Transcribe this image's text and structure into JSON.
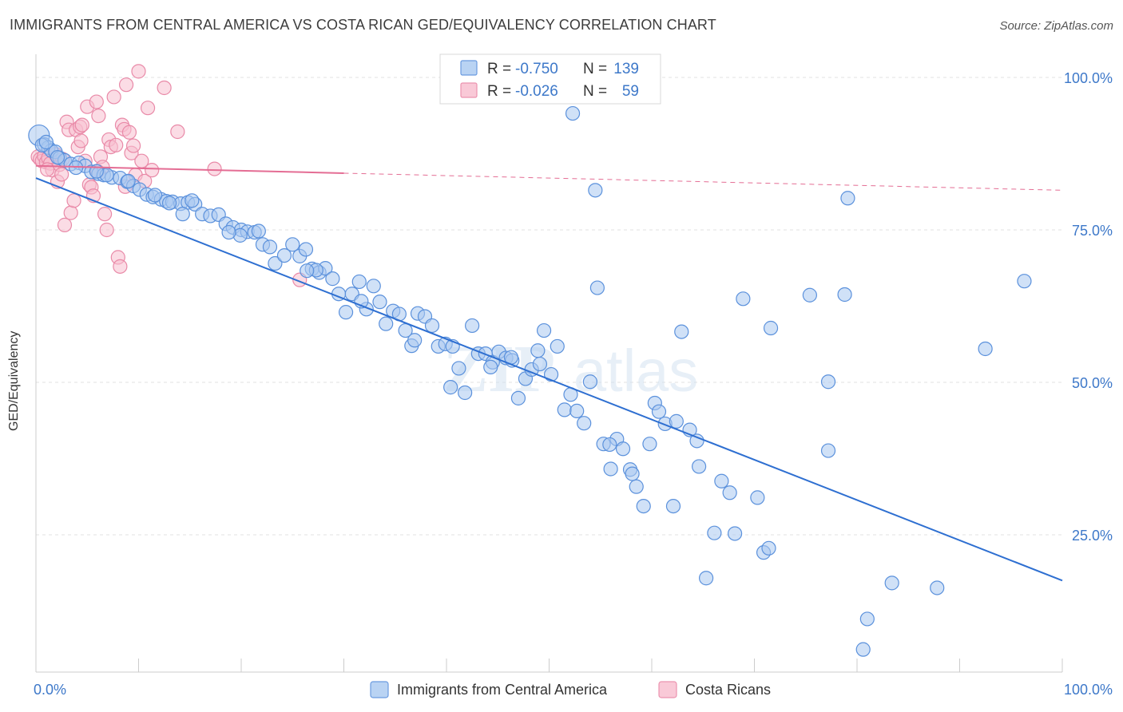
{
  "header": {
    "title": "IMMIGRANTS FROM CENTRAL AMERICA VS COSTA RICAN GED/EQUIVALENCY CORRELATION CHART",
    "source": "Source: ZipAtlas.com"
  },
  "watermark": {
    "part1": "ZIP",
    "part2": "atlas"
  },
  "colors": {
    "blue_fill": "#a9c8f0",
    "blue_stroke": "#5b91dc",
    "blue_line": "#2e6fd1",
    "pink_fill": "#f7bfd0",
    "pink_stroke": "#e98aa8",
    "pink_line": "#e46d94",
    "axis_text": "#3d78c9",
    "grid": "#e2e2e2"
  },
  "legend": {
    "rows": [
      {
        "r_label": "R =",
        "r_value": "-0.750",
        "n_label": "N =",
        "n_value": "139"
      },
      {
        "r_label": "R =",
        "r_value": "-0.026",
        "n_label": "N =",
        "n_value": "59"
      }
    ]
  },
  "chart_data": {
    "type": "scatter",
    "title": "IMMIGRANTS FROM CENTRAL AMERICA VS COSTA RICAN GED/EQUIVALENCY CORRELATION CHART",
    "xlabel": "",
    "ylabel": "GED/Equivalency",
    "xlim": [
      0,
      100
    ],
    "ylim": [
      0,
      102
    ],
    "x_tick_labels": [
      "0.0%",
      "100.0%"
    ],
    "y_ticks": [
      25,
      50,
      75,
      100
    ],
    "y_tick_labels": [
      "25.0%",
      "50.0%",
      "75.0%",
      "100.0%"
    ],
    "series": [
      {
        "name": "Immigrants from Central America",
        "color": "blue",
        "r": -0.75,
        "n": 139,
        "trend": {
          "x0": 0,
          "y0": 83.5,
          "x1": 100,
          "y1": 17.5,
          "solid_until": 100
        },
        "points": [
          [
            0.3,
            90.5
          ],
          [
            0.8,
            89.0
          ],
          [
            1.2,
            88.5
          ],
          [
            1.5,
            88.0
          ],
          [
            1.9,
            87.8
          ],
          [
            2.3,
            86.8
          ],
          [
            2.8,
            86.4
          ],
          [
            3.4,
            85.8
          ],
          [
            4.2,
            86.0
          ],
          [
            4.8,
            85.5
          ],
          [
            5.4,
            84.5
          ],
          [
            6.1,
            84.2
          ],
          [
            6.6,
            84.0
          ],
          [
            7.4,
            83.6
          ],
          [
            8.2,
            83.5
          ],
          [
            8.9,
            82.9
          ],
          [
            9.5,
            82.2
          ],
          [
            10.1,
            81.6
          ],
          [
            10.8,
            80.8
          ],
          [
            11.4,
            80.4
          ],
          [
            12.2,
            80.0
          ],
          [
            12.7,
            79.7
          ],
          [
            13.3,
            79.6
          ],
          [
            14.1,
            79.3
          ],
          [
            14.8,
            79.5
          ],
          [
            15.5,
            79.2
          ],
          [
            16.2,
            77.6
          ],
          [
            17.0,
            77.3
          ],
          [
            17.8,
            77.5
          ],
          [
            18.5,
            76.0
          ],
          [
            19.2,
            75.4
          ],
          [
            20.0,
            75.0
          ],
          [
            20.6,
            74.7
          ],
          [
            21.3,
            74.6
          ],
          [
            22.1,
            72.6
          ],
          [
            22.8,
            72.2
          ],
          [
            23.3,
            69.5
          ],
          [
            24.2,
            70.8
          ],
          [
            25.0,
            72.6
          ],
          [
            25.7,
            70.7
          ],
          [
            26.3,
            71.8
          ],
          [
            26.9,
            68.6
          ],
          [
            27.6,
            68.0
          ],
          [
            28.2,
            68.7
          ],
          [
            28.9,
            67.0
          ],
          [
            29.5,
            64.5
          ],
          [
            30.2,
            61.5
          ],
          [
            30.8,
            64.5
          ],
          [
            31.5,
            66.5
          ],
          [
            32.2,
            62.0
          ],
          [
            32.9,
            65.8
          ],
          [
            33.5,
            63.2
          ],
          [
            34.1,
            59.6
          ],
          [
            34.8,
            61.7
          ],
          [
            35.4,
            61.2
          ],
          [
            36.0,
            58.5
          ],
          [
            36.6,
            56.0
          ],
          [
            37.2,
            61.3
          ],
          [
            37.9,
            60.8
          ],
          [
            38.6,
            59.3
          ],
          [
            39.2,
            55.9
          ],
          [
            39.9,
            56.3
          ],
          [
            40.6,
            55.9
          ],
          [
            41.2,
            52.3
          ],
          [
            41.8,
            48.3
          ],
          [
            42.5,
            59.3
          ],
          [
            43.1,
            54.7
          ],
          [
            43.8,
            54.7
          ],
          [
            44.5,
            53.3
          ],
          [
            45.1,
            55.0
          ],
          [
            45.8,
            54.0
          ],
          [
            46.4,
            53.6
          ],
          [
            47.0,
            47.4
          ],
          [
            47.7,
            50.6
          ],
          [
            48.3,
            52.1
          ],
          [
            48.9,
            55.2
          ],
          [
            49.5,
            58.5
          ],
          [
            50.2,
            51.3
          ],
          [
            50.8,
            55.9
          ],
          [
            51.5,
            45.5
          ],
          [
            52.1,
            48.0
          ],
          [
            52.7,
            45.3
          ],
          [
            53.4,
            43.3
          ],
          [
            54.0,
            50.1
          ],
          [
            54.7,
            65.5
          ],
          [
            55.3,
            39.9
          ],
          [
            56.0,
            35.8
          ],
          [
            56.6,
            40.7
          ],
          [
            57.2,
            39.1
          ],
          [
            57.9,
            35.7
          ],
          [
            58.5,
            32.9
          ],
          [
            59.2,
            29.7
          ],
          [
            59.8,
            39.9
          ],
          [
            60.3,
            46.6
          ],
          [
            60.7,
            45.2
          ],
          [
            61.3,
            43.2
          ],
          [
            62.1,
            29.7
          ],
          [
            62.9,
            58.3
          ],
          [
            63.7,
            42.2
          ],
          [
            64.4,
            40.4
          ],
          [
            64.6,
            36.2
          ],
          [
            65.3,
            17.9
          ],
          [
            66.1,
            25.3
          ],
          [
            66.8,
            33.8
          ],
          [
            67.6,
            31.9
          ],
          [
            68.1,
            25.2
          ],
          [
            68.9,
            63.7
          ],
          [
            70.3,
            31.1
          ],
          [
            70.9,
            22.1
          ],
          [
            71.4,
            22.8
          ],
          [
            71.6,
            58.9
          ],
          [
            75.4,
            64.3
          ],
          [
            77.2,
            38.8
          ],
          [
            78.8,
            64.4
          ],
          [
            79.1,
            80.2
          ],
          [
            77.2,
            50.1
          ],
          [
            80.6,
            6.2
          ],
          [
            81.0,
            11.2
          ],
          [
            83.4,
            17.1
          ],
          [
            87.8,
            16.3
          ],
          [
            92.5,
            55.5
          ],
          [
            96.3,
            66.6
          ],
          [
            52.3,
            94.1
          ],
          [
            54.5,
            81.5
          ],
          [
            58.1,
            35.0
          ],
          [
            40.4,
            49.2
          ],
          [
            36.9,
            56.9
          ],
          [
            46.3,
            54.1
          ],
          [
            0.6,
            88.9
          ],
          [
            3.9,
            85.2
          ],
          [
            6.9,
            84.0
          ],
          [
            11.6,
            80.7
          ],
          [
            14.3,
            77.6
          ],
          [
            19.9,
            74.1
          ],
          [
            27.3,
            68.4
          ],
          [
            31.7,
            63.3
          ],
          [
            44.3,
            52.5
          ],
          [
            49.1,
            53.0
          ],
          [
            55.9,
            39.8
          ],
          [
            62.4,
            43.6
          ],
          [
            26.4,
            68.3
          ],
          [
            21.7,
            74.8
          ],
          [
            18.8,
            74.6
          ],
          [
            15.2,
            79.8
          ],
          [
            13.0,
            79.4
          ],
          [
            9.0,
            83.0
          ],
          [
            5.9,
            84.6
          ],
          [
            2.1,
            86.9
          ],
          [
            1.0,
            89.4
          ]
        ]
      },
      {
        "name": "Costa Ricans",
        "color": "pink",
        "r": -0.026,
        "n": 59,
        "trend": {
          "x0": 0,
          "y0": 85.5,
          "x1": 100,
          "y1": 81.5,
          "solid_until": 30
        },
        "points": [
          [
            0.2,
            87.0
          ],
          [
            0.4,
            86.6
          ],
          [
            0.6,
            86.3
          ],
          [
            0.8,
            87.1
          ],
          [
            1.0,
            86.1
          ],
          [
            1.2,
            86.8
          ],
          [
            1.4,
            85.9
          ],
          [
            1.6,
            84.8
          ],
          [
            1.9,
            87.4
          ],
          [
            2.1,
            82.9
          ],
          [
            2.3,
            85.7
          ],
          [
            2.5,
            84.1
          ],
          [
            2.8,
            75.8
          ],
          [
            3.0,
            92.7
          ],
          [
            3.2,
            91.4
          ],
          [
            3.4,
            77.8
          ],
          [
            3.7,
            79.8
          ],
          [
            3.9,
            91.4
          ],
          [
            4.1,
            88.6
          ],
          [
            4.3,
            91.9
          ],
          [
            4.5,
            92.2
          ],
          [
            4.8,
            86.3
          ],
          [
            5.0,
            95.2
          ],
          [
            5.2,
            82.4
          ],
          [
            5.4,
            82.0
          ],
          [
            5.6,
            80.6
          ],
          [
            5.9,
            96.0
          ],
          [
            6.1,
            93.7
          ],
          [
            6.3,
            87.0
          ],
          [
            6.5,
            85.3
          ],
          [
            6.7,
            77.6
          ],
          [
            6.9,
            75.0
          ],
          [
            7.1,
            89.8
          ],
          [
            7.3,
            88.6
          ],
          [
            7.6,
            96.8
          ],
          [
            7.8,
            88.9
          ],
          [
            8.0,
            70.5
          ],
          [
            8.2,
            69.0
          ],
          [
            8.4,
            92.2
          ],
          [
            8.6,
            91.5
          ],
          [
            8.8,
            98.8
          ],
          [
            9.1,
            91.0
          ],
          [
            9.3,
            87.6
          ],
          [
            9.5,
            88.8
          ],
          [
            9.7,
            84.0
          ],
          [
            10.0,
            101.0
          ],
          [
            10.3,
            86.3
          ],
          [
            10.6,
            83.0
          ],
          [
            10.9,
            95.0
          ],
          [
            11.3,
            84.8
          ],
          [
            12.5,
            98.3
          ],
          [
            13.8,
            91.1
          ],
          [
            17.4,
            85.0
          ],
          [
            25.7,
            66.8
          ],
          [
            1.1,
            84.9
          ],
          [
            2.6,
            86.6
          ],
          [
            4.4,
            89.6
          ],
          [
            6.0,
            84.6
          ],
          [
            8.7,
            82.1
          ]
        ]
      }
    ]
  },
  "bottom_legend": {
    "items": [
      "Immigrants from Central America",
      "Costa Ricans"
    ]
  }
}
